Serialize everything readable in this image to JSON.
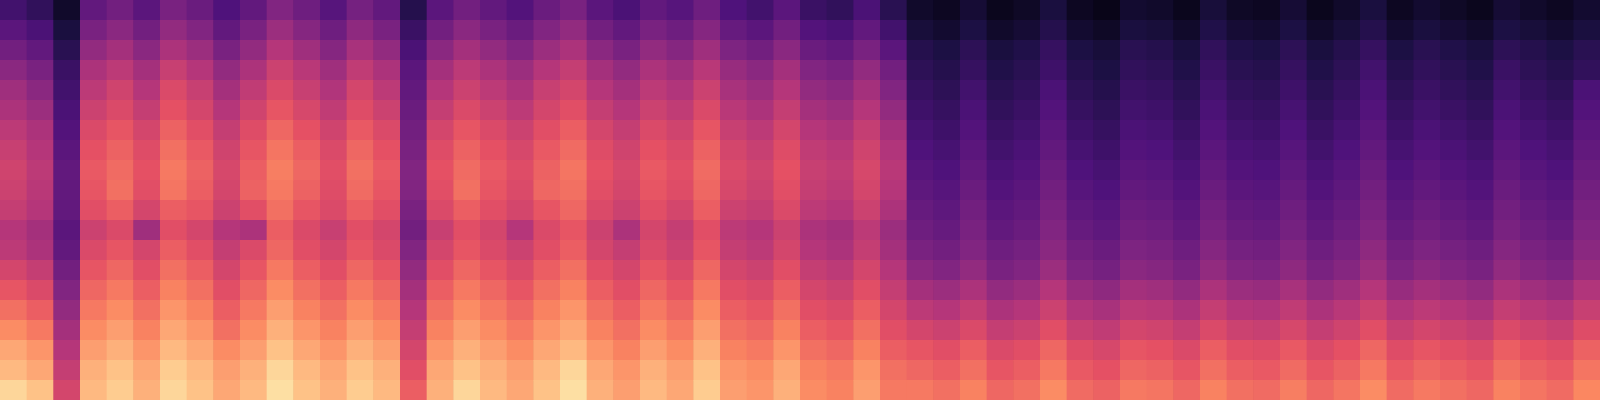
{
  "chart_data": {
    "type": "heatmap",
    "color": "magma",
    "zlim": [
      0,
      100
    ],
    "tick_labels": false,
    "cells": [
      [
        22,
        18,
        8,
        30,
        34,
        28,
        36,
        32,
        25,
        30,
        38,
        33,
        27,
        35,
        30,
        15,
        28,
        34,
        30,
        26,
        32,
        36,
        28,
        24,
        30,
        27,
        33,
        25,
        22,
        28,
        20,
        18,
        24,
        16,
        8,
        6,
        10,
        5,
        7,
        12,
        6,
        4,
        9,
        8,
        5,
        11,
        7,
        6,
        10,
        5,
        8,
        12,
        6,
        9,
        7,
        5,
        10,
        8,
        6,
        9
      ],
      [
        28,
        24,
        12,
        36,
        40,
        34,
        42,
        38,
        30,
        36,
        44,
        39,
        33,
        41,
        36,
        20,
        34,
        40,
        36,
        32,
        38,
        42,
        34,
        30,
        36,
        33,
        39,
        31,
        28,
        34,
        26,
        24,
        30,
        22,
        11,
        9,
        13,
        8,
        10,
        15,
        9,
        7,
        12,
        11,
        8,
        14,
        10,
        9,
        13,
        8,
        11,
        15,
        9,
        12,
        10,
        8,
        13,
        11,
        9,
        12
      ],
      [
        34,
        30,
        16,
        42,
        46,
        40,
        48,
        44,
        36,
        42,
        50,
        45,
        39,
        47,
        42,
        24,
        40,
        46,
        42,
        38,
        44,
        48,
        40,
        36,
        42,
        39,
        45,
        37,
        34,
        40,
        32,
        30,
        36,
        28,
        15,
        13,
        17,
        12,
        14,
        19,
        13,
        11,
        16,
        15,
        12,
        18,
        14,
        13,
        17,
        12,
        15,
        19,
        13,
        16,
        14,
        12,
        17,
        15,
        13,
        16
      ],
      [
        40,
        36,
        20,
        48,
        52,
        46,
        55,
        50,
        42,
        48,
        56,
        51,
        45,
        53,
        48,
        28,
        46,
        52,
        48,
        44,
        50,
        54,
        46,
        42,
        48,
        45,
        51,
        43,
        40,
        46,
        38,
        36,
        42,
        34,
        17,
        15,
        19,
        14,
        16,
        21,
        15,
        13,
        18,
        17,
        14,
        20,
        16,
        15,
        19,
        14,
        17,
        22,
        15,
        18,
        16,
        14,
        20,
        17,
        15,
        18
      ],
      [
        45,
        40,
        22,
        52,
        57,
        50,
        60,
        55,
        46,
        53,
        60,
        55,
        49,
        58,
        52,
        30,
        50,
        56,
        52,
        48,
        55,
        58,
        50,
        46,
        52,
        49,
        56,
        47,
        44,
        50,
        42,
        40,
        46,
        38,
        19,
        17,
        22,
        16,
        18,
        24,
        17,
        15,
        20,
        19,
        16,
        22,
        18,
        17,
        21,
        16,
        19,
        24,
        17,
        20,
        18,
        16,
        22,
        19,
        17,
        24
      ],
      [
        48,
        44,
        24,
        56,
        60,
        54,
        63,
        58,
        50,
        57,
        64,
        59,
        53,
        61,
        56,
        32,
        54,
        60,
        56,
        52,
        58,
        62,
        54,
        50,
        56,
        53,
        60,
        51,
        48,
        54,
        46,
        44,
        50,
        42,
        21,
        19,
        24,
        18,
        20,
        26,
        19,
        17,
        22,
        21,
        18,
        24,
        20,
        19,
        23,
        18,
        21,
        26,
        19,
        22,
        20,
        18,
        24,
        21,
        19,
        26
      ],
      [
        52,
        48,
        26,
        60,
        64,
        58,
        67,
        62,
        54,
        61,
        68,
        63,
        57,
        65,
        60,
        34,
        58,
        64,
        60,
        56,
        62,
        66,
        58,
        54,
        60,
        57,
        64,
        55,
        52,
        58,
        50,
        48,
        54,
        46,
        23,
        21,
        26,
        20,
        22,
        28,
        21,
        19,
        24,
        23,
        20,
        26,
        22,
        21,
        25,
        20,
        23,
        28,
        21,
        24,
        22,
        20,
        26,
        23,
        21,
        28
      ],
      [
        55,
        50,
        28,
        63,
        67,
        61,
        70,
        65,
        57,
        64,
        71,
        66,
        60,
        68,
        63,
        36,
        61,
        67,
        63,
        59,
        65,
        69,
        61,
        57,
        63,
        60,
        67,
        58,
        55,
        61,
        53,
        51,
        57,
        49,
        25,
        23,
        28,
        22,
        24,
        30,
        23,
        21,
        26,
        25,
        22,
        28,
        24,
        23,
        27,
        22,
        25,
        30,
        23,
        26,
        24,
        22,
        28,
        25,
        23,
        30
      ],
      [
        57,
        52,
        30,
        65,
        69,
        63,
        72,
        67,
        59,
        66,
        73,
        68,
        62,
        70,
        65,
        38,
        63,
        69,
        65,
        61,
        67,
        71,
        63,
        59,
        65,
        62,
        69,
        60,
        57,
        63,
        55,
        53,
        59,
        51,
        27,
        25,
        30,
        24,
        26,
        32,
        25,
        23,
        28,
        27,
        24,
        30,
        26,
        25,
        29,
        24,
        27,
        32,
        25,
        28,
        26,
        24,
        30,
        27,
        25,
        32
      ],
      [
        56,
        51,
        30,
        64,
        70,
        62,
        71,
        66,
        58,
        67,
        72,
        67,
        61,
        69,
        64,
        38,
        62,
        70,
        64,
        60,
        68,
        70,
        62,
        58,
        64,
        61,
        68,
        59,
        56,
        62,
        54,
        52,
        58,
        50,
        29,
        27,
        32,
        26,
        28,
        34,
        27,
        25,
        30,
        29,
        26,
        32,
        28,
        27,
        31,
        26,
        29,
        34,
        27,
        30,
        28,
        26,
        32,
        29,
        27,
        34
      ],
      [
        54,
        50,
        30,
        62,
        66,
        58,
        66,
        64,
        56,
        62,
        70,
        64,
        60,
        66,
        62,
        36,
        60,
        66,
        62,
        58,
        64,
        68,
        60,
        56,
        62,
        58,
        66,
        56,
        54,
        60,
        52,
        50,
        56,
        48,
        31,
        29,
        34,
        28,
        30,
        36,
        29,
        27,
        32,
        31,
        28,
        34,
        30,
        29,
        33,
        28,
        31,
        36,
        29,
        32,
        30,
        28,
        34,
        31,
        29,
        36
      ],
      [
        50,
        46,
        28,
        56,
        60,
        45,
        62,
        58,
        50,
        48,
        66,
        60,
        55,
        62,
        58,
        34,
        55,
        62,
        58,
        50,
        60,
        64,
        56,
        48,
        58,
        54,
        62,
        52,
        50,
        56,
        48,
        46,
        52,
        44,
        33,
        31,
        36,
        30,
        32,
        38,
        31,
        29,
        34,
        33,
        30,
        36,
        32,
        31,
        35,
        30,
        33,
        38,
        31,
        34,
        32,
        30,
        36,
        33,
        31,
        38
      ],
      [
        52,
        48,
        30,
        60,
        64,
        58,
        66,
        62,
        54,
        60,
        68,
        62,
        58,
        64,
        60,
        38,
        58,
        64,
        60,
        56,
        62,
        66,
        58,
        54,
        60,
        56,
        64,
        54,
        52,
        58,
        50,
        48,
        54,
        46,
        36,
        34,
        38,
        33,
        35,
        40,
        34,
        32,
        37,
        36,
        33,
        39,
        35,
        34,
        38,
        33,
        36,
        41,
        34,
        37,
        35,
        33,
        39,
        36,
        34,
        40
      ],
      [
        58,
        54,
        34,
        64,
        68,
        62,
        70,
        66,
        58,
        64,
        72,
        66,
        62,
        68,
        64,
        42,
        62,
        68,
        64,
        60,
        66,
        70,
        62,
        58,
        64,
        60,
        68,
        58,
        56,
        62,
        54,
        52,
        58,
        50,
        40,
        38,
        42,
        36,
        38,
        44,
        37,
        35,
        40,
        39,
        36,
        42,
        38,
        37,
        41,
        36,
        39,
        44,
        37,
        40,
        38,
        36,
        42,
        39,
        37,
        43
      ],
      [
        64,
        60,
        38,
        68,
        72,
        66,
        74,
        70,
        62,
        68,
        76,
        70,
        66,
        72,
        68,
        46,
        66,
        72,
        68,
        64,
        70,
        74,
        66,
        62,
        68,
        64,
        72,
        62,
        60,
        66,
        58,
        56,
        62,
        54,
        46,
        44,
        48,
        42,
        44,
        50,
        43,
        41,
        46,
        45,
        42,
        48,
        44,
        43,
        47,
        42,
        45,
        50,
        43,
        46,
        44,
        42,
        48,
        45,
        43,
        49
      ],
      [
        70,
        66,
        42,
        72,
        76,
        70,
        78,
        74,
        66,
        72,
        80,
        74,
        70,
        76,
        72,
        50,
        70,
        76,
        72,
        68,
        74,
        78,
        70,
        66,
        72,
        68,
        76,
        66,
        64,
        70,
        62,
        60,
        66,
        58,
        52,
        50,
        54,
        48,
        50,
        56,
        49,
        47,
        52,
        51,
        48,
        54,
        50,
        49,
        53,
        48,
        51,
        56,
        49,
        52,
        50,
        48,
        54,
        51,
        49,
        55
      ],
      [
        76,
        72,
        46,
        76,
        80,
        74,
        82,
        78,
        70,
        76,
        84,
        78,
        74,
        80,
        76,
        54,
        74,
        80,
        76,
        72,
        78,
        82,
        74,
        70,
        76,
        72,
        80,
        70,
        68,
        74,
        66,
        64,
        70,
        62,
        58,
        56,
        60,
        54,
        56,
        62,
        55,
        53,
        58,
        57,
        54,
        60,
        56,
        55,
        59,
        54,
        57,
        62,
        55,
        58,
        56,
        54,
        60,
        57,
        55,
        61
      ],
      [
        82,
        78,
        50,
        80,
        84,
        78,
        86,
        82,
        76,
        80,
        88,
        82,
        78,
        84,
        80,
        58,
        78,
        84,
        80,
        76,
        82,
        86,
        78,
        74,
        80,
        76,
        84,
        74,
        72,
        78,
        70,
        68,
        74,
        66,
        64,
        62,
        66,
        60,
        62,
        68,
        61,
        59,
        64,
        63,
        60,
        66,
        62,
        61,
        65,
        60,
        63,
        68,
        61,
        64,
        62,
        60,
        66,
        63,
        61,
        67
      ],
      [
        86,
        82,
        54,
        84,
        88,
        82,
        90,
        86,
        80,
        84,
        92,
        86,
        82,
        88,
        84,
        62,
        82,
        88,
        84,
        80,
        86,
        92,
        82,
        78,
        84,
        80,
        88,
        78,
        76,
        82,
        74,
        72,
        78,
        70,
        68,
        66,
        70,
        64,
        66,
        72,
        65,
        63,
        68,
        67,
        64,
        70,
        66,
        65,
        69,
        64,
        67,
        72,
        65,
        68,
        66,
        64,
        70,
        67,
        65,
        71
      ],
      [
        92,
        88,
        58,
        86,
        90,
        84,
        92,
        88,
        82,
        86,
        94,
        88,
        84,
        90,
        86,
        66,
        84,
        92,
        86,
        82,
        88,
        94,
        84,
        80,
        86,
        82,
        90,
        80,
        78,
        84,
        76,
        74,
        80,
        72,
        72,
        70,
        74,
        68,
        70,
        76,
        69,
        67,
        72,
        71,
        68,
        74,
        70,
        69,
        73,
        68,
        71,
        76,
        69,
        72,
        70,
        68,
        74,
        71,
        69,
        75
      ]
    ]
  }
}
